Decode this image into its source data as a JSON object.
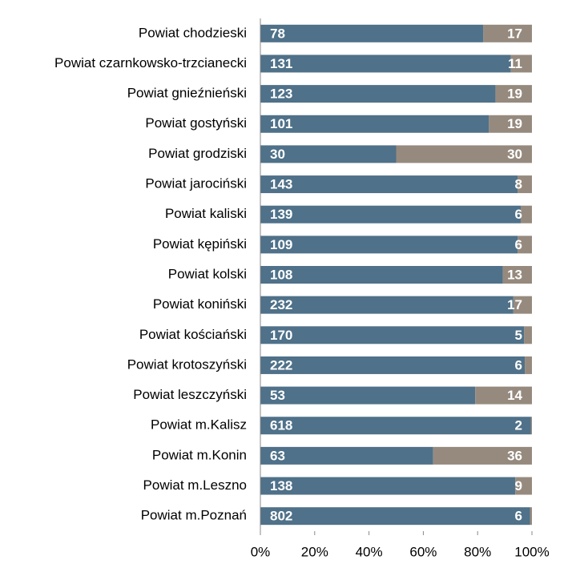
{
  "chart_data": {
    "type": "bar",
    "orientation": "horizontal",
    "stacking": "percent",
    "categories": [
      "Powiat chodzieski",
      "Powiat czarnkowsko-trzcianecki",
      "Powiat gnieźnieński",
      "Powiat gostyński",
      "Powiat grodziski",
      "Powiat jarociński",
      "Powiat kaliski",
      "Powiat kępiński",
      "Powiat kolski",
      "Powiat koniński",
      "Powiat kościański",
      "Powiat krotoszyński",
      "Powiat leszczyński",
      "Powiat m.Kalisz",
      "Powiat m.Konin",
      "Powiat m.Leszno",
      "Powiat m.Poznań"
    ],
    "series": [
      {
        "color": "#4f7189",
        "values": [
          78,
          131,
          123,
          101,
          30,
          143,
          139,
          109,
          108,
          232,
          170,
          222,
          53,
          618,
          63,
          138,
          802
        ]
      },
      {
        "color": "#968a7e",
        "values": [
          17,
          11,
          19,
          19,
          30,
          8,
          6,
          6,
          13,
          17,
          5,
          6,
          14,
          2,
          36,
          9,
          6
        ]
      }
    ],
    "xlim": [
      0,
      100
    ],
    "xticks": [
      {
        "value": 0,
        "label": "0%"
      },
      {
        "value": 20,
        "label": "20%"
      },
      {
        "value": 40,
        "label": "40%"
      },
      {
        "value": 60,
        "label": "60%"
      },
      {
        "value": 80,
        "label": "80%"
      },
      {
        "value": 100,
        "label": "100%"
      }
    ]
  }
}
